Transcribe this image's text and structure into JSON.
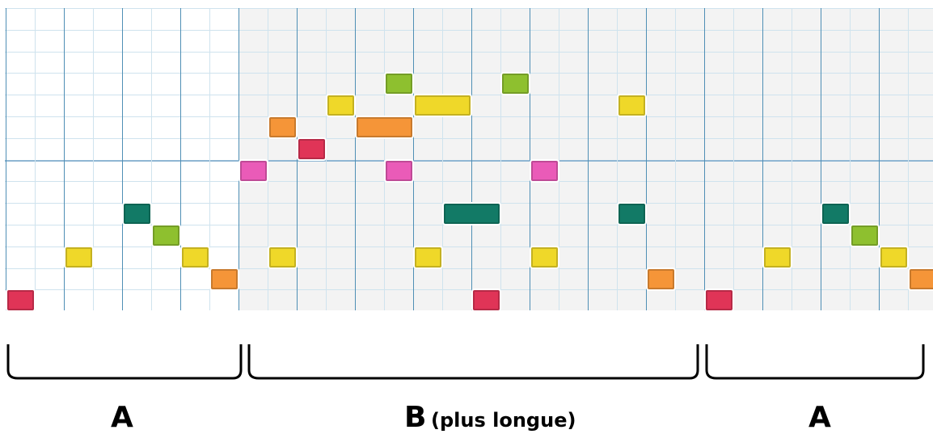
{
  "colors": {
    "background": "#ffffff",
    "section_b_background": "#f3f3f3",
    "grid_line": "#cfe3ee",
    "measure_line": "#4f8fb5",
    "red": "#e03457",
    "orange": "#f59538",
    "yellow": "#efd829",
    "lime": "#8ec02f",
    "teal": "#127a66",
    "pink": "#ea5bb8"
  },
  "grid": {
    "columns": 32,
    "rows": 14,
    "beats_per_measure": 4
  },
  "sections": [
    {
      "label": "A",
      "note": "",
      "start": 0,
      "end": 8,
      "shaded": false
    },
    {
      "label": "B",
      "note": "(plus longue)",
      "start": 8,
      "end": 24,
      "shaded": true
    },
    {
      "label": "A",
      "note": "",
      "start": 24,
      "end": 32,
      "shaded": true
    }
  ],
  "notes": [
    {
      "col": 0,
      "row": 13,
      "len": 1,
      "color": "red"
    },
    {
      "col": 2,
      "row": 11,
      "len": 1,
      "color": "yellow"
    },
    {
      "col": 4,
      "row": 9,
      "len": 1,
      "color": "teal"
    },
    {
      "col": 5,
      "row": 10,
      "len": 1,
      "color": "lime"
    },
    {
      "col": 6,
      "row": 11,
      "len": 1,
      "color": "yellow"
    },
    {
      "col": 7,
      "row": 12,
      "len": 1,
      "color": "orange"
    },
    {
      "col": 8,
      "row": 7,
      "len": 1,
      "color": "pink"
    },
    {
      "col": 9,
      "row": 5,
      "len": 1,
      "color": "orange"
    },
    {
      "col": 9,
      "row": 11,
      "len": 1,
      "color": "yellow"
    },
    {
      "col": 10,
      "row": 6,
      "len": 1,
      "color": "red"
    },
    {
      "col": 11,
      "row": 4,
      "len": 1,
      "color": "yellow"
    },
    {
      "col": 12,
      "row": 5,
      "len": 2,
      "color": "orange"
    },
    {
      "col": 13,
      "row": 3,
      "len": 1,
      "color": "lime"
    },
    {
      "col": 13,
      "row": 7,
      "len": 1,
      "color": "pink"
    },
    {
      "col": 14,
      "row": 4,
      "len": 2,
      "color": "yellow"
    },
    {
      "col": 14,
      "row": 11,
      "len": 1,
      "color": "yellow"
    },
    {
      "col": 15,
      "row": 9,
      "len": 2,
      "color": "teal"
    },
    {
      "col": 16,
      "row": 13,
      "len": 1,
      "color": "red"
    },
    {
      "col": 17,
      "row": 3,
      "len": 1,
      "color": "lime"
    },
    {
      "col": 18,
      "row": 7,
      "len": 1,
      "color": "pink"
    },
    {
      "col": 18,
      "row": 11,
      "len": 1,
      "color": "yellow"
    },
    {
      "col": 21,
      "row": 4,
      "len": 1,
      "color": "yellow"
    },
    {
      "col": 21,
      "row": 9,
      "len": 1,
      "color": "teal"
    },
    {
      "col": 22,
      "row": 12,
      "len": 1,
      "color": "orange"
    },
    {
      "col": 24,
      "row": 13,
      "len": 1,
      "color": "red"
    },
    {
      "col": 26,
      "row": 11,
      "len": 1,
      "color": "yellow"
    },
    {
      "col": 28,
      "row": 9,
      "len": 1,
      "color": "teal"
    },
    {
      "col": 29,
      "row": 10,
      "len": 1,
      "color": "lime"
    },
    {
      "col": 30,
      "row": 11,
      "len": 1,
      "color": "yellow"
    },
    {
      "col": 31,
      "row": 12,
      "len": 1,
      "color": "orange"
    }
  ]
}
